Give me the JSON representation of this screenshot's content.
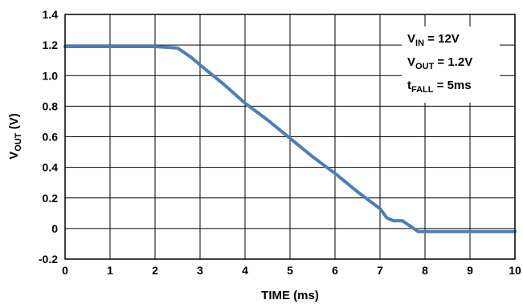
{
  "chart_data": {
    "type": "line",
    "xlabel": "TIME (ms)",
    "ylabel": {
      "main": "V",
      "sub": "OUT",
      "unit": " (V)"
    },
    "xlim": [
      0,
      10
    ],
    "ylim": [
      -0.2,
      1.4
    ],
    "xticks": [
      "0",
      "1",
      "2",
      "3",
      "4",
      "5",
      "6",
      "7",
      "8",
      "9",
      "10"
    ],
    "yticks": [
      "1.4",
      "1.2",
      "1.0",
      "0.8",
      "0.6",
      "0.4",
      "0.2",
      "0",
      "-0.2"
    ],
    "grid": true,
    "series_color": "#4a7ebb",
    "series": [
      {
        "x": [
          0,
          1,
          2,
          2.5,
          2.8,
          3,
          3.5,
          4,
          4.5,
          5,
          5.5,
          6,
          6.5,
          7,
          7.15,
          7.3,
          7.5,
          7.7,
          7.85,
          8,
          9,
          10
        ],
        "y": [
          1.19,
          1.19,
          1.19,
          1.18,
          1.12,
          1.07,
          0.95,
          0.82,
          0.71,
          0.59,
          0.47,
          0.36,
          0.24,
          0.13,
          0.07,
          0.05,
          0.05,
          0.01,
          -0.02,
          -0.02,
          -0.02,
          -0.02
        ]
      }
    ],
    "annotations": [
      {
        "main": "V",
        "sub": "IN",
        "rest": " = 12V"
      },
      {
        "main": "V",
        "sub": "OUT",
        "rest": " = 1.2V"
      },
      {
        "main": "t",
        "sub": "FALL",
        "rest": " = 5ms"
      }
    ]
  }
}
